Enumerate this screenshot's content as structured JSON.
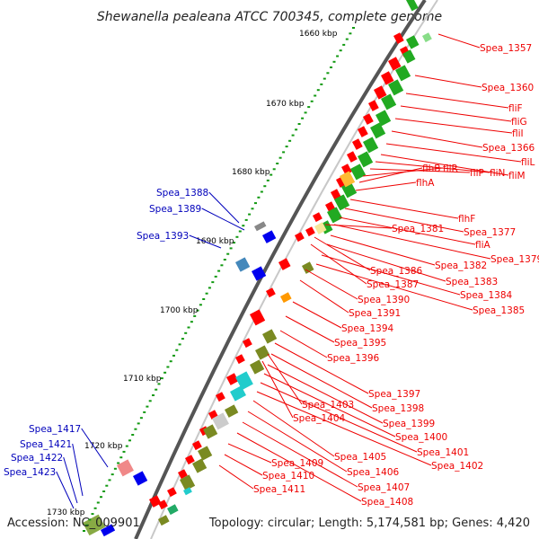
{
  "title": "Shewanella pealeana ATCC 700345, complete genome",
  "footer": {
    "accession": "Accession: NC_009901",
    "summary": "Topology: circular; Length: 5,174,581 bp; Genes: 4,420"
  },
  "kbp_labels": [
    "1660 kbp",
    "1670 kbp",
    "1680 kbp",
    "1690 kbp",
    "1700 kbp",
    "1710 kbp",
    "1720 kbp",
    "1730 kbp"
  ],
  "colors": {
    "right_label": "#ee0000",
    "left_label": "#0000bb",
    "gene_red": "#ff0000",
    "gene_green": "#22aa22",
    "gene_olive": "#7a8a22",
    "gene_blue": "#0000ee",
    "gene_cyan": "#22cccc"
  },
  "right_labels": [
    "Spea_1357",
    "Spea_1360",
    "fliF",
    "fliG",
    "fliI",
    "Spea_1366",
    "fliL",
    "fliM",
    "fliN",
    "fliP",
    "fliR",
    "flhB",
    "flhA",
    "flhF",
    "Spea_1377",
    "fliA",
    "Spea_1379",
    "Spea_1381",
    "Spea_1382",
    "Spea_1383",
    "Spea_1384",
    "Spea_1385",
    "Spea_1386",
    "Spea_1387",
    "Spea_1390",
    "Spea_1391",
    "Spea_1394",
    "Spea_1395",
    "Spea_1396",
    "Spea_1397",
    "Spea_1398",
    "Spea_1399",
    "Spea_1400",
    "Spea_1401",
    "Spea_1402",
    "Spea_1403",
    "Spea_1404",
    "Spea_1405",
    "Spea_1406",
    "Spea_1407",
    "Spea_1408",
    "Spea_1409",
    "Spea_1410",
    "Spea_1411"
  ],
  "left_labels": [
    "Spea_1388",
    "Spea_1389",
    "Spea_1393",
    "Spea_1417",
    "Spea_1421",
    "Spea_1422",
    "Spea_1423"
  ]
}
